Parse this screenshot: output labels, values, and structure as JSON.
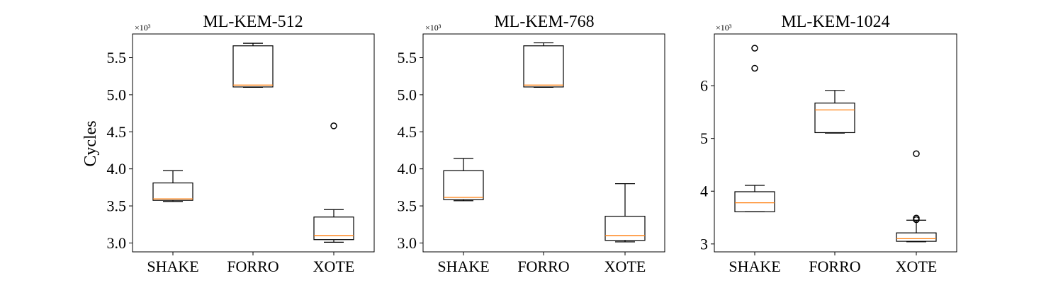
{
  "chart_data": [
    {
      "type": "box",
      "title": "ML-KEM-512",
      "ylabel": "Cycles",
      "offset_text": "×10³",
      "categories": [
        "SHAKE",
        "FORRO",
        "XOTE"
      ],
      "ylim": [
        2.88,
        5.82
      ],
      "yticks": [
        3.0,
        3.5,
        4.0,
        4.5,
        5.0,
        5.5
      ],
      "ytick_labels": [
        "3.0",
        "3.5",
        "4.0",
        "4.5",
        "5.0",
        "5.5"
      ],
      "boxes": [
        {
          "whislo": 3.56,
          "q1": 3.575,
          "med": 3.595,
          "q3": 3.81,
          "whishi": 3.975,
          "fliers": []
        },
        {
          "whislo": 5.1,
          "q1": 5.105,
          "med": 5.13,
          "q3": 5.66,
          "whishi": 5.695,
          "fliers": []
        },
        {
          "whislo": 3.01,
          "q1": 3.045,
          "med": 3.1,
          "q3": 3.35,
          "whishi": 3.45,
          "fliers": [
            4.58
          ]
        }
      ]
    },
    {
      "type": "box",
      "title": "ML-KEM-768",
      "ylabel": "",
      "offset_text": "×10³",
      "categories": [
        "SHAKE",
        "FORRO",
        "XOTE"
      ],
      "ylim": [
        2.88,
        5.82
      ],
      "yticks": [
        3.0,
        3.5,
        4.0,
        4.5,
        5.0,
        5.5
      ],
      "ytick_labels": [
        "3.0",
        "3.5",
        "4.0",
        "4.5",
        "5.0",
        "5.5"
      ],
      "boxes": [
        {
          "whislo": 3.57,
          "q1": 3.585,
          "med": 3.615,
          "q3": 3.975,
          "whishi": 4.14,
          "fliers": []
        },
        {
          "whislo": 5.1,
          "q1": 5.105,
          "med": 5.13,
          "q3": 5.66,
          "whishi": 5.7,
          "fliers": []
        },
        {
          "whislo": 3.015,
          "q1": 3.035,
          "med": 3.1,
          "q3": 3.36,
          "whishi": 3.8,
          "fliers": []
        }
      ]
    },
    {
      "type": "box",
      "title": "ML-KEM-1024",
      "ylabel": "",
      "offset_text": "×10³",
      "categories": [
        "SHAKE",
        "FORRO",
        "XOTE"
      ],
      "ylim": [
        2.85,
        6.98
      ],
      "yticks": [
        3,
        4,
        5,
        6
      ],
      "ytick_labels": [
        "3",
        "4",
        "5",
        "6"
      ],
      "boxes": [
        {
          "whislo": 3.61,
          "q1": 3.61,
          "med": 3.78,
          "q3": 3.99,
          "whishi": 4.11,
          "fliers": [
            6.33,
            6.71
          ]
        },
        {
          "whislo": 5.1,
          "q1": 5.11,
          "med": 5.54,
          "q3": 5.67,
          "whishi": 5.91,
          "fliers": []
        },
        {
          "whislo": 3.04,
          "q1": 3.05,
          "med": 3.1,
          "q3": 3.21,
          "whishi": 3.45,
          "fliers": [
            3.46,
            3.49,
            4.71
          ]
        }
      ]
    }
  ],
  "colors": {
    "median": "#ff7f0e",
    "box": "#000000"
  }
}
